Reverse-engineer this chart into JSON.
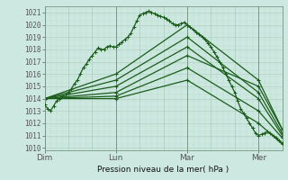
{
  "xlabel": "Pression niveau de la mer( hPa )",
  "bg_color": "#cce8e0",
  "grid_color_major": "#aaccbb",
  "grid_color_minor": "#bbddcc",
  "line_color": "#1a5c1a",
  "ylim": [
    1009.8,
    1021.5
  ],
  "yticks": [
    1010,
    1011,
    1012,
    1013,
    1014,
    1015,
    1016,
    1017,
    1018,
    1019,
    1020,
    1021
  ],
  "day_labels": [
    "Dim",
    "Lun",
    "Mar",
    "Mer"
  ],
  "day_positions": [
    0,
    72,
    144,
    216
  ],
  "total_hours": 240,
  "lines": [
    {
      "x": [
        0,
        3,
        6,
        9,
        12,
        15,
        18,
        21,
        24,
        27,
        30,
        33,
        36,
        39,
        42,
        45,
        48,
        51,
        54,
        57,
        60,
        63,
        66,
        69,
        72,
        75,
        78,
        81,
        84,
        87,
        90,
        93,
        96,
        99,
        102,
        105,
        108,
        111,
        114,
        117,
        120,
        123,
        126,
        129,
        132,
        135,
        138,
        141,
        144,
        147,
        150,
        153,
        156,
        159,
        162,
        165,
        168,
        171,
        174,
        177,
        180,
        183,
        186,
        189,
        192,
        195,
        198,
        201,
        204,
        207,
        210,
        213,
        216,
        219,
        222,
        225,
        228,
        231,
        234,
        237,
        240
      ],
      "y": [
        1013.5,
        1013.2,
        1013.0,
        1013.4,
        1013.8,
        1014.0,
        1014.2,
        1014.3,
        1014.5,
        1014.8,
        1015.2,
        1015.5,
        1016.0,
        1016.5,
        1016.8,
        1017.2,
        1017.5,
        1017.8,
        1018.1,
        1018.0,
        1018.0,
        1018.2,
        1018.3,
        1018.2,
        1018.2,
        1018.4,
        1018.6,
        1018.8,
        1019.0,
        1019.3,
        1019.8,
        1020.3,
        1020.8,
        1020.9,
        1021.0,
        1021.1,
        1021.0,
        1020.9,
        1020.8,
        1020.7,
        1020.6,
        1020.5,
        1020.3,
        1020.1,
        1020.0,
        1020.0,
        1020.1,
        1020.2,
        1020.0,
        1019.8,
        1019.6,
        1019.4,
        1019.2,
        1019.0,
        1018.8,
        1018.5,
        1018.2,
        1017.8,
        1017.4,
        1017.0,
        1016.5,
        1016.0,
        1015.5,
        1015.0,
        1014.5,
        1013.8,
        1013.2,
        1012.8,
        1012.4,
        1012.0,
        1011.6,
        1011.2,
        1011.0,
        1011.1,
        1011.2,
        1011.3,
        1011.2,
        1011.0,
        1010.8,
        1010.6,
        1010.4
      ]
    },
    {
      "x": [
        0,
        72,
        144,
        216,
        240
      ],
      "y": [
        1014.0,
        1016.0,
        1020.0,
        1015.5,
        1011.5
      ]
    },
    {
      "x": [
        0,
        72,
        144,
        216,
        240
      ],
      "y": [
        1014.0,
        1015.5,
        1019.0,
        1014.5,
        1011.2
      ]
    },
    {
      "x": [
        0,
        72,
        144,
        216,
        240
      ],
      "y": [
        1014.0,
        1015.0,
        1018.2,
        1014.0,
        1011.0
      ]
    },
    {
      "x": [
        0,
        72,
        144,
        216,
        240
      ],
      "y": [
        1014.0,
        1014.5,
        1017.5,
        1015.0,
        1011.5
      ]
    },
    {
      "x": [
        0,
        72,
        144,
        216,
        240
      ],
      "y": [
        1014.0,
        1014.2,
        1016.5,
        1013.0,
        1010.8
      ]
    },
    {
      "x": [
        0,
        72,
        144,
        216,
        240
      ],
      "y": [
        1014.0,
        1014.0,
        1015.5,
        1012.0,
        1010.3
      ]
    }
  ]
}
